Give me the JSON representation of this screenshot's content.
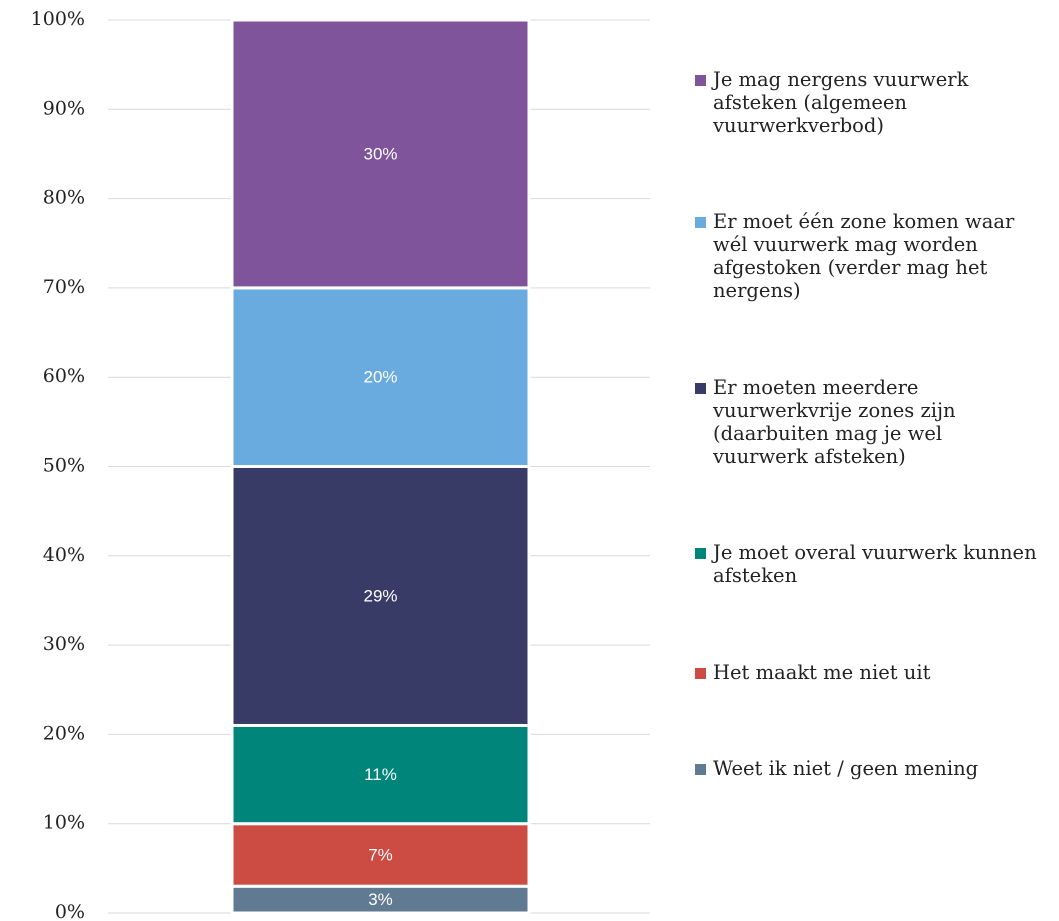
{
  "chart_data": {
    "type": "bar",
    "stacked": true,
    "ylim": [
      0,
      100
    ],
    "yticks": [
      {
        "value": 0,
        "label": "0%"
      },
      {
        "value": 10,
        "label": "10%"
      },
      {
        "value": 20,
        "label": "20%"
      },
      {
        "value": 30,
        "label": "30%"
      },
      {
        "value": 40,
        "label": "40%"
      },
      {
        "value": 50,
        "label": "50%"
      },
      {
        "value": 60,
        "label": "60%"
      },
      {
        "value": 70,
        "label": "70%"
      },
      {
        "value": 80,
        "label": "80%"
      },
      {
        "value": 90,
        "label": "90%"
      },
      {
        "value": 100,
        "label": "100%"
      }
    ],
    "grid": true,
    "legend": "right",
    "series": [
      {
        "name": "Je mag nergens vuurwerk afsteken (algemeen vuurwerkverbod)",
        "color": "#7f549b",
        "values": [
          30
        ],
        "value_labels": [
          "30%"
        ]
      },
      {
        "name": "Er moet één zone komen waar wél vuurwerk mag worden afgestoken (verder mag het nergens)",
        "color": "#69aadf",
        "values": [
          20
        ],
        "value_labels": [
          "20%"
        ]
      },
      {
        "name": "Er moeten meerdere vuurwerkvrije zones zijn (daarbuiten mag je wel vuurwerk afsteken)",
        "color": "#383b66",
        "values": [
          29
        ],
        "value_labels": [
          "29%"
        ]
      },
      {
        "name": "Je moet overal vuurwerk kunnen afsteken",
        "color": "#00857a",
        "values": [
          11
        ],
        "value_labels": [
          "11%"
        ]
      },
      {
        "name": "Het maakt me niet uit",
        "color": "#cc4b43",
        "values": [
          7
        ],
        "value_labels": [
          "7%"
        ]
      },
      {
        "name": "Weet ik niet / geen mening",
        "color": "#5f7a91",
        "values": [
          3
        ],
        "value_labels": [
          "3%"
        ]
      }
    ]
  }
}
